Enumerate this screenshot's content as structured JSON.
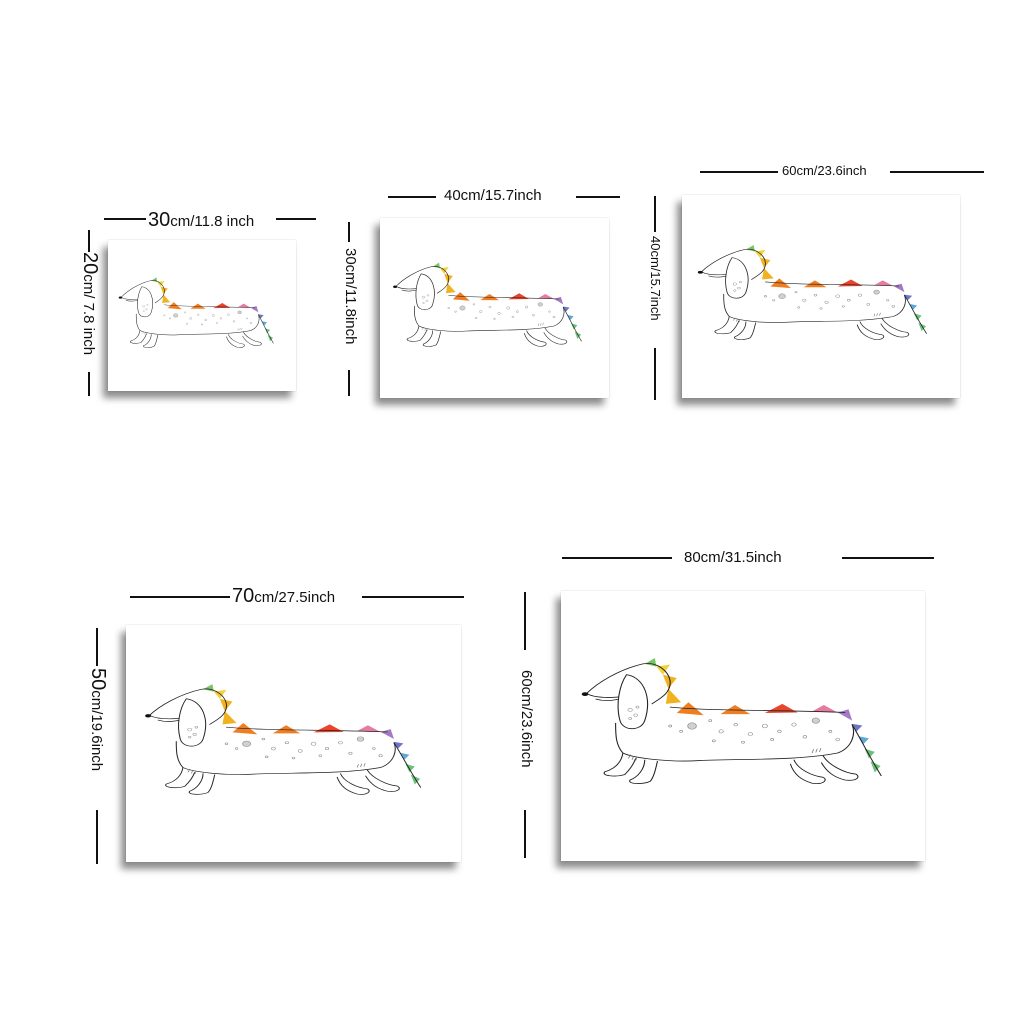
{
  "sizes": [
    {
      "width_label": {
        "num": "30",
        "rest": "cm/11.8 inch"
      },
      "height_label": {
        "num": "20",
        "rest": "cm/ 7.8 inch"
      }
    },
    {
      "width_label": {
        "num": "",
        "rest": "40cm/15.7inch"
      },
      "height_label": {
        "num": "",
        "rest": "30cm/11.8inch"
      }
    },
    {
      "width_label": {
        "num": "",
        "rest": "60cm/23.6inch"
      },
      "height_label": {
        "num": "",
        "rest": "40cm/15.7inch"
      }
    },
    {
      "width_label": {
        "num": "70",
        "rest": "cm/27.5inch"
      },
      "height_label": {
        "num": "50",
        "rest": "cm/19.6inch"
      }
    },
    {
      "width_label": {
        "num": "",
        "rest": "80cm/31.5inch"
      },
      "height_label": {
        "num": "",
        "rest": "60cm/23.6inch"
      }
    }
  ],
  "artwork": {
    "subject": "dachshund-dinosaur-illustration",
    "spike_colors": [
      "#7cc36a",
      "#f2d23a",
      "#f0b21f",
      "#ef7d22",
      "#e8452d",
      "#e23a2a",
      "#e77aa0",
      "#a57ac4",
      "#6c76c8",
      "#5fa8d8",
      "#6cc07a"
    ]
  }
}
